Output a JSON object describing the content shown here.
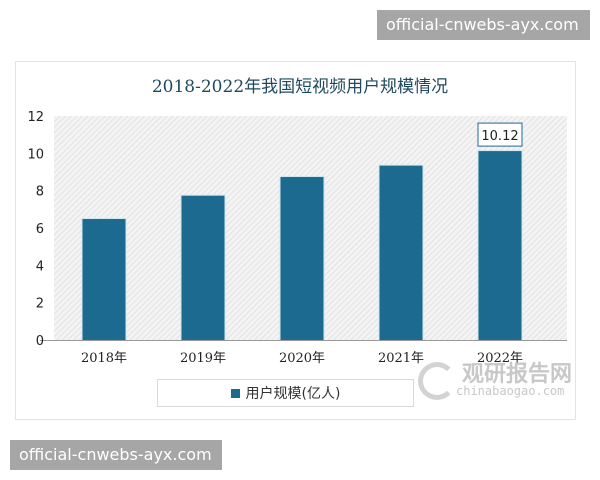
{
  "watermark_top": "official-cnwebs-ayx.com",
  "watermark_bottom": "official-cnwebs-ayx.com",
  "logo": {
    "cn": "观研报告网",
    "en": "chinabaogao.com"
  },
  "chart_data": {
    "type": "bar",
    "title": "2018-2022年我国短视频用户规模情况",
    "categories": [
      "2018年",
      "2019年",
      "2020年",
      "2021年",
      "2022年"
    ],
    "series": [
      {
        "name": "用户规模(亿人)",
        "values": [
          6.48,
          7.73,
          8.73,
          9.34,
          10.12
        ]
      }
    ],
    "data_labels": [
      {
        "category": "2022年",
        "text": "10.12"
      }
    ],
    "ylim": [
      0,
      12
    ],
    "yticks": [
      "0",
      "2",
      "4",
      "6",
      "8",
      "10",
      "12"
    ],
    "xlabel": "",
    "ylabel": "",
    "grid": false,
    "legend": "bottom",
    "colors": {
      "bar": "#1c6a8f",
      "title": "#1f4a5e"
    }
  }
}
